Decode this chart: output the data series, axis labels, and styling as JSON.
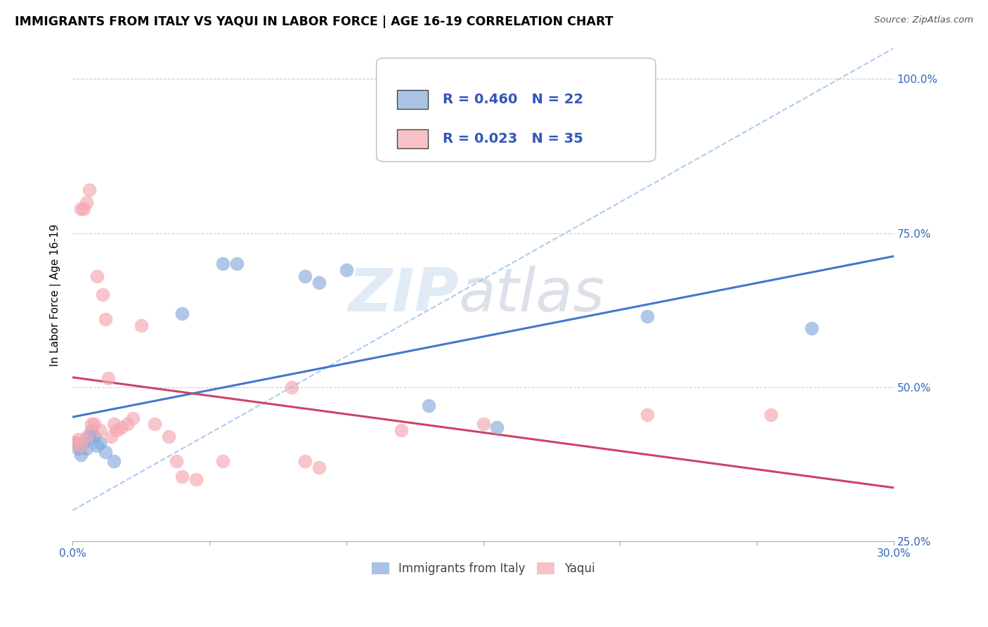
{
  "title": "IMMIGRANTS FROM ITALY VS YAQUI IN LABOR FORCE | AGE 16-19 CORRELATION CHART",
  "source": "Source: ZipAtlas.com",
  "ylabel": "In Labor Force | Age 16-19",
  "xlim": [
    0.0,
    0.3
  ],
  "ylim": [
    0.3,
    1.05
  ],
  "x_ticks": [
    0.0,
    0.05,
    0.1,
    0.15,
    0.2,
    0.25,
    0.3
  ],
  "x_tick_labels": [
    "0.0%",
    "",
    "",
    "",
    "",
    "",
    "30.0%"
  ],
  "y_ticks": [
    0.25,
    0.5,
    0.75,
    1.0
  ],
  "right_y_tick_labels": [
    "25.0%",
    "50.0%",
    "75.0%",
    "100.0%"
  ],
  "italy_color": "#87AADB",
  "yaqui_color": "#F4A7B0",
  "italy_R": 0.46,
  "italy_N": 22,
  "yaqui_R": 0.023,
  "yaqui_N": 35,
  "watermark_zip": "ZIP",
  "watermark_atlas": "atlas",
  "trend_color_italy": "#4477CC",
  "trend_color_yaqui": "#CC4466",
  "diagonal_color": "#AACCEE",
  "italy_x": [
    0.001,
    0.002,
    0.003,
    0.004,
    0.005,
    0.006,
    0.007,
    0.008,
    0.009,
    0.01,
    0.012,
    0.015,
    0.04,
    0.055,
    0.06,
    0.085,
    0.09,
    0.1,
    0.13,
    0.155,
    0.21,
    0.27
  ],
  "italy_y": [
    0.41,
    0.4,
    0.39,
    0.41,
    0.4,
    0.42,
    0.43,
    0.42,
    0.405,
    0.41,
    0.395,
    0.38,
    0.62,
    0.7,
    0.7,
    0.68,
    0.67,
    0.69,
    0.47,
    0.435,
    0.615,
    0.595
  ],
  "yaqui_x": [
    0.001,
    0.002,
    0.003,
    0.003,
    0.004,
    0.005,
    0.005,
    0.006,
    0.007,
    0.008,
    0.009,
    0.01,
    0.011,
    0.012,
    0.013,
    0.014,
    0.015,
    0.016,
    0.018,
    0.02,
    0.022,
    0.025,
    0.03,
    0.035,
    0.038,
    0.04,
    0.045,
    0.055,
    0.08,
    0.085,
    0.09,
    0.12,
    0.15,
    0.21,
    0.255
  ],
  "yaqui_y": [
    0.41,
    0.415,
    0.405,
    0.79,
    0.79,
    0.42,
    0.8,
    0.82,
    0.44,
    0.44,
    0.68,
    0.43,
    0.65,
    0.61,
    0.515,
    0.42,
    0.44,
    0.43,
    0.435,
    0.44,
    0.45,
    0.6,
    0.44,
    0.42,
    0.38,
    0.355,
    0.35,
    0.38,
    0.5,
    0.38,
    0.37,
    0.43,
    0.44,
    0.455,
    0.455
  ]
}
